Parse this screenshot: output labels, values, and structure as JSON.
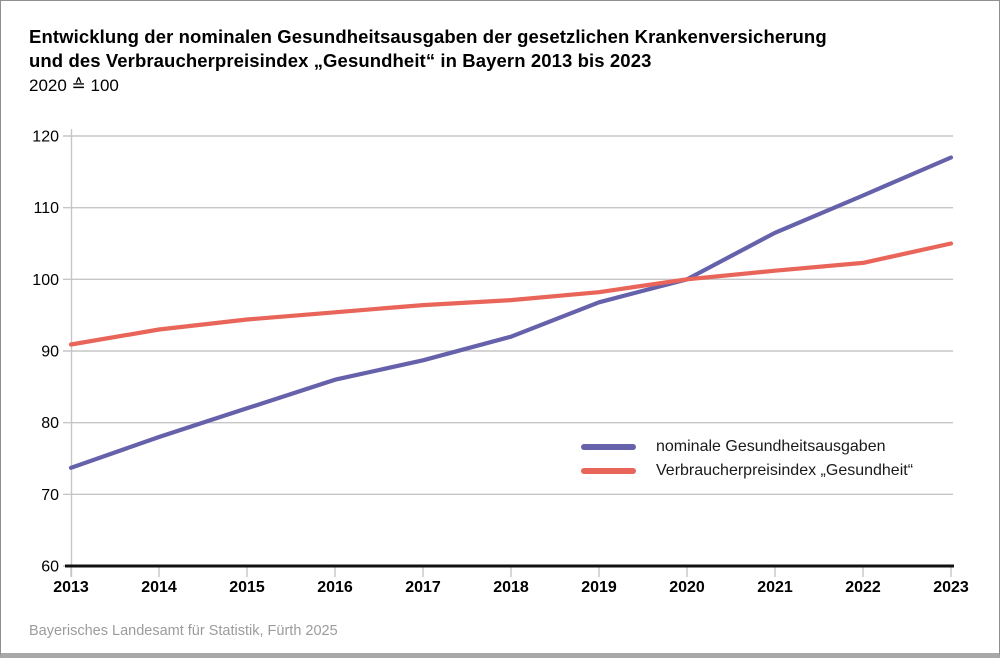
{
  "header": {
    "title_line1": "Entwicklung der nominalen Gesundheitsausgaben der gesetzlichen Krankenversicherung",
    "title_line2": "und des Verbraucherpreisindex „Gesundheit“ in Bayern 2013 bis 2023",
    "subtitle": "2020 ≙ 100"
  },
  "footer": {
    "source": "Bayerisches Landesamt für Statistik, Fürth 2025"
  },
  "style": {
    "grid_color": "#c6c6c6",
    "axis_color": "#111111",
    "tick_label_color": "#000000",
    "border_color": "#8f8f8f",
    "bottom_bar_color": "#a8a8a8",
    "footer_color": "#9c9c9c"
  },
  "chart_data": {
    "type": "line",
    "title": "Entwicklung der nominalen Gesundheitsausgaben der gesetzlichen Krankenversicherung und des Verbraucherpreisindex „Gesundheit“ in Bayern 2013 bis 2023",
    "subtitle": "2020 ≙ 100",
    "x": [
      2013,
      2014,
      2015,
      2016,
      2017,
      2018,
      2019,
      2020,
      2021,
      2022,
      2023
    ],
    "series": [
      {
        "name": "nominale Gesundheitsausgaben",
        "color": "#6661ab",
        "values": [
          73.7,
          78.0,
          82.0,
          86.0,
          88.7,
          92.0,
          96.8,
          100.0,
          106.5,
          111.7,
          117.0
        ]
      },
      {
        "name": "Verbraucherpreisindex „Gesundheit“",
        "color": "#e96459",
        "values": [
          90.9,
          93.0,
          94.4,
          95.4,
          96.4,
          97.1,
          98.2,
          100.0,
          101.2,
          102.3,
          105.0
        ]
      }
    ],
    "ylim": [
      60,
      120
    ],
    "y_ticks": [
      60,
      70,
      80,
      90,
      100,
      110,
      120
    ],
    "xlabel": "",
    "ylabel": "",
    "grid": true,
    "legend_position": "inside-bottom-right"
  }
}
